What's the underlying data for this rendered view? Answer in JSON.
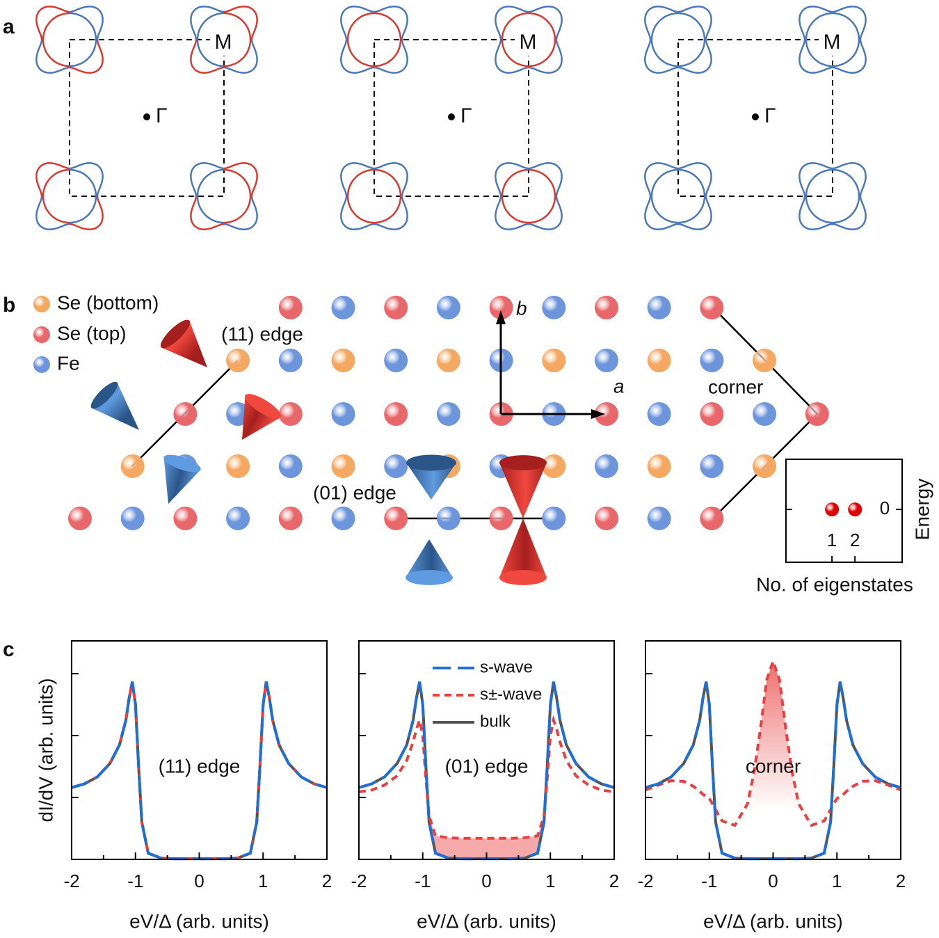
{
  "panel_labels": [
    "a",
    "b",
    "c"
  ],
  "fermi_surfaces": [
    {
      "M": "M",
      "Gamma": "Γ"
    },
    {
      "M": "M",
      "Gamma": "Γ"
    },
    {
      "M": "M",
      "Gamma": "Γ"
    }
  ],
  "lattice": {
    "legend": [
      {
        "name": "Se (bottom)",
        "color": "#f5a862"
      },
      {
        "name": "Se (top)",
        "color": "#e8676a"
      },
      {
        "name": "Fe",
        "color": "#6d95dc"
      }
    ],
    "edge_11": "(11) edge",
    "edge_01": "(01) edge",
    "corner": "corner",
    "axis_a": "a",
    "axis_b": "b"
  },
  "inset": {
    "type": "scatter",
    "x": [
      1,
      2
    ],
    "values": [
      0,
      0
    ],
    "xlim": [
      -1,
      4.05
    ],
    "ylim": [
      -1,
      0.95
    ],
    "xticks": [
      1,
      2
    ],
    "yticks": [
      0
    ],
    "x_label": "No. of eigenstates",
    "y_label": "Energy",
    "color": "#e00000"
  },
  "chart_data": [
    {
      "type": "line",
      "annotation": "(11) edge",
      "x_label": "eV/Δ (arb. units)",
      "y_label": "dI/dV (arb. units)",
      "xlim": [
        -2,
        2
      ],
      "xticks": [
        -2,
        -1,
        0,
        1,
        2
      ],
      "ylim": [
        0,
        3.53
      ],
      "yticks": [
        1,
        2,
        3
      ],
      "x": [
        -2,
        -1.8,
        -1.6,
        -1.4,
        -1.25,
        -1.15,
        -1.1,
        -1.05,
        -1,
        -0.95,
        -0.9,
        -0.8,
        -0.6,
        -0.4,
        -0.3,
        -0.2,
        -0.1,
        0,
        0.1,
        0.2,
        0.3,
        0.4,
        0.6,
        0.8,
        0.9,
        0.95,
        1,
        1.05,
        1.1,
        1.15,
        1.25,
        1.4,
        1.6,
        1.8,
        2
      ],
      "series": [
        {
          "color": "#1f6fd6",
          "dash": "long",
          "values": [
            1.16,
            1.22,
            1.33,
            1.55,
            1.85,
            2.25,
            2.6,
            2.87,
            2.5,
            1.5,
            0.6,
            0.1,
            0.02,
            0.01,
            0.01,
            0.01,
            0.01,
            0.01,
            0.01,
            0.01,
            0.01,
            0.01,
            0.02,
            0.1,
            0.6,
            1.5,
            2.5,
            2.87,
            2.6,
            2.25,
            1.85,
            1.55,
            1.33,
            1.22,
            1.16
          ]
        },
        {
          "color": "#e84040",
          "dash": "short",
          "values": [
            1.16,
            1.22,
            1.33,
            1.55,
            1.85,
            2.25,
            2.6,
            2.87,
            2.5,
            1.5,
            0.6,
            0.1,
            0.02,
            0.01,
            0.01,
            0.01,
            0.01,
            0.01,
            0.01,
            0.01,
            0.01,
            0.01,
            0.02,
            0.1,
            0.6,
            1.5,
            2.5,
            2.87,
            2.6,
            2.25,
            1.85,
            1.55,
            1.33,
            1.22,
            1.16
          ]
        },
        {
          "color": "#555555",
          "dash": "solid",
          "values": [
            1.16,
            1.22,
            1.33,
            1.55,
            1.85,
            2.25,
            2.6,
            2.87,
            2.5,
            1.5,
            0.6,
            0.1,
            0.02,
            0.01,
            0.01,
            0.01,
            0.01,
            0.01,
            0.01,
            0.01,
            0.01,
            0.01,
            0.02,
            0.1,
            0.6,
            1.5,
            2.5,
            2.87,
            2.6,
            2.25,
            1.85,
            1.55,
            1.33,
            1.22,
            1.16
          ]
        }
      ]
    },
    {
      "type": "line",
      "annotation": "(01) edge",
      "x_label": "eV/Δ (arb. units)",
      "legend": "top-center",
      "xlim": [
        -2,
        2
      ],
      "xticks": [
        -2,
        -1,
        0,
        1,
        2
      ],
      "ylim": [
        0,
        3.53
      ],
      "yticks": [
        1,
        2,
        3
      ],
      "x": [
        -2,
        -1.8,
        -1.6,
        -1.4,
        -1.25,
        -1.15,
        -1.1,
        -1.05,
        -1,
        -0.95,
        -0.9,
        -0.8,
        -0.6,
        -0.4,
        -0.3,
        -0.2,
        -0.1,
        0,
        0.1,
        0.2,
        0.3,
        0.4,
        0.6,
        0.8,
        0.9,
        0.95,
        1,
        1.05,
        1.1,
        1.15,
        1.25,
        1.4,
        1.6,
        1.8,
        2
      ],
      "series": [
        {
          "name": "s-wave",
          "color": "#1f6fd6",
          "dash": "long",
          "values": [
            1.16,
            1.22,
            1.33,
            1.55,
            1.85,
            2.25,
            2.6,
            2.87,
            2.5,
            1.5,
            0.6,
            0.1,
            0.02,
            0.01,
            0.01,
            0.01,
            0.01,
            0.01,
            0.01,
            0.01,
            0.01,
            0.01,
            0.02,
            0.1,
            0.6,
            1.5,
            2.5,
            2.87,
            2.6,
            2.25,
            1.85,
            1.55,
            1.33,
            1.22,
            1.16
          ]
        },
        {
          "name": "s±-wave",
          "color": "#e84040",
          "dash": "short",
          "fill": "solid",
          "values": [
            1.09,
            1.12,
            1.2,
            1.35,
            1.6,
            1.9,
            2.1,
            2.25,
            2.0,
            1.3,
            0.7,
            0.38,
            0.35,
            0.34,
            0.34,
            0.34,
            0.34,
            0.34,
            0.34,
            0.34,
            0.34,
            0.34,
            0.35,
            0.38,
            0.7,
            1.3,
            2.0,
            2.25,
            2.1,
            1.9,
            1.6,
            1.35,
            1.2,
            1.12,
            1.09
          ]
        },
        {
          "name": "bulk",
          "color": "#555555",
          "dash": "solid",
          "values": [
            1.16,
            1.22,
            1.33,
            1.55,
            1.85,
            2.25,
            2.6,
            2.87,
            2.5,
            1.5,
            0.6,
            0.1,
            0.02,
            0.01,
            0.01,
            0.01,
            0.01,
            0.01,
            0.01,
            0.01,
            0.01,
            0.01,
            0.02,
            0.1,
            0.6,
            1.5,
            2.5,
            2.87,
            2.6,
            2.25,
            1.85,
            1.55,
            1.33,
            1.22,
            1.16
          ]
        }
      ]
    },
    {
      "type": "line",
      "annotation": "corner",
      "x_label": "eV/Δ (arb. units)",
      "xlim": [
        -2,
        2
      ],
      "xticks": [
        -2,
        -1,
        0,
        1,
        2
      ],
      "ylim": [
        0,
        3.53
      ],
      "yticks": [
        1,
        2,
        3
      ],
      "x": [
        -2,
        -1.8,
        -1.6,
        -1.4,
        -1.25,
        -1.15,
        -1.1,
        -1.05,
        -1,
        -0.95,
        -0.9,
        -0.8,
        -0.6,
        -0.4,
        -0.3,
        -0.2,
        -0.1,
        0,
        0.1,
        0.2,
        0.3,
        0.4,
        0.6,
        0.8,
        0.9,
        0.95,
        1,
        1.05,
        1.1,
        1.15,
        1.25,
        1.4,
        1.6,
        1.8,
        2
      ],
      "series": [
        {
          "color": "#1f6fd6",
          "dash": "long",
          "values": [
            1.16,
            1.22,
            1.33,
            1.55,
            1.85,
            2.25,
            2.6,
            2.87,
            2.5,
            1.5,
            0.6,
            0.1,
            0.02,
            0.01,
            0.01,
            0.01,
            0.01,
            0.01,
            0.01,
            0.01,
            0.01,
            0.01,
            0.02,
            0.1,
            0.6,
            1.5,
            2.5,
            2.87,
            2.6,
            2.25,
            1.85,
            1.55,
            1.33,
            1.22,
            1.16
          ]
        },
        {
          "color": "#e84040",
          "dash": "short",
          "fill": "gradient",
          "values": [
            1.12,
            1.2,
            1.27,
            1.26,
            1.18,
            1.1,
            1.05,
            1.02,
            0.98,
            0.9,
            0.8,
            0.62,
            0.55,
            0.9,
            1.4,
            2.1,
            2.9,
            3.2,
            2.9,
            2.1,
            1.4,
            0.9,
            0.55,
            0.62,
            0.8,
            0.9,
            0.98,
            1.02,
            1.05,
            1.1,
            1.18,
            1.26,
            1.27,
            1.2,
            1.12
          ]
        },
        {
          "color": "#555555",
          "dash": "solid",
          "values": [
            1.16,
            1.22,
            1.33,
            1.55,
            1.85,
            2.25,
            2.6,
            2.87,
            2.5,
            1.5,
            0.6,
            0.1,
            0.02,
            0.01,
            0.01,
            0.01,
            0.01,
            0.01,
            0.01,
            0.01,
            0.01,
            0.01,
            0.02,
            0.1,
            0.6,
            1.5,
            2.5,
            2.87,
            2.6,
            2.25,
            1.85,
            1.55,
            1.33,
            1.22,
            1.16
          ]
        }
      ]
    }
  ]
}
